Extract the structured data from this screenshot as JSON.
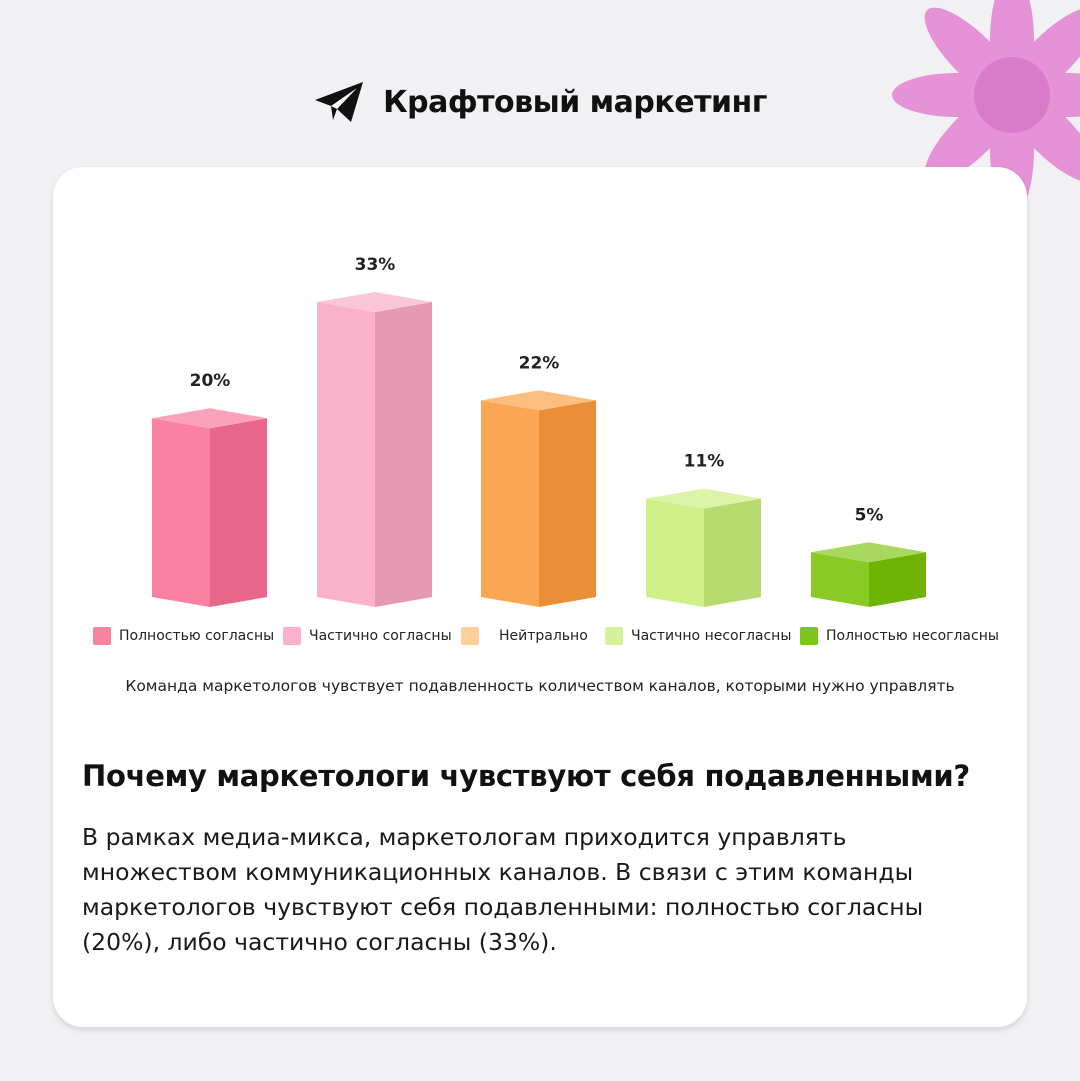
{
  "brand": {
    "name": "Крафтовый маркетинг",
    "logo_icon": "paper-plane-icon"
  },
  "decoration": {
    "icon": "flower-icon",
    "color": "#e488d4"
  },
  "chart_data": {
    "type": "bar",
    "categories": [
      "Полностью согласны",
      "Частично согласны",
      "Нейтрально",
      "Частично несогласны",
      "Полностью несогласны"
    ],
    "values": [
      20,
      33,
      22,
      11,
      5
    ],
    "labels": [
      "20%",
      "33%",
      "22%",
      "11%",
      "5%"
    ],
    "colors": [
      "#fb6f95",
      "#f9a6c3",
      "#fb9a3c",
      "#c8ee79",
      "#79c307"
    ],
    "title": "Команда маркетологов чувствует подавленность количеством каналов, которыми нужно управлять",
    "ylim": [
      0,
      33
    ],
    "legend_position": "bottom",
    "grid": false
  },
  "legend": [
    {
      "label": "Полностью согласны",
      "color": "#f7849c"
    },
    {
      "label": "Частично согласны",
      "color": "#f9b2c8"
    },
    {
      "label": "Нейтрально",
      "color": "#fdd09a"
    },
    {
      "label": "Частично несогласны",
      "color": "#d5f29a"
    },
    {
      "label": "Полностью несогласны",
      "color": "#7cc61c"
    }
  ],
  "article": {
    "heading": "Почему маркетологи чувствуют себя подавленными?",
    "lines": [
      "В рамках медиа-микса, маркетологам приходится управлять",
      "множеством коммуникационных каналов. В связи с этим команды",
      "маркетологов чувствуют себя подавленными: полностью согласны",
      "(20%), либо частично согласны (33%)."
    ]
  }
}
